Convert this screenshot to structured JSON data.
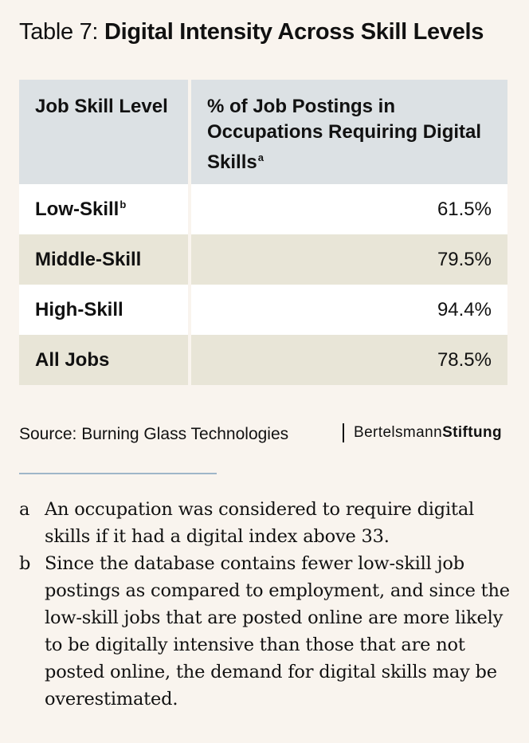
{
  "title": {
    "prefix": "Table 7: ",
    "main": "Digital Intensity Across Skill Levels"
  },
  "table": {
    "headers": [
      {
        "text": "Job Skill Level",
        "sup": ""
      },
      {
        "text": "% of Job Postings in Occupations Requiring Digital Skills",
        "sup": "a"
      }
    ],
    "rows": [
      {
        "label": "Low-Skill",
        "sup": "b",
        "value": "61.5%"
      },
      {
        "label": "Middle-Skill",
        "sup": "",
        "value": "79.5%"
      },
      {
        "label": "High-Skill",
        "sup": "",
        "value": "94.4%"
      },
      {
        "label": "All Jobs",
        "sup": "",
        "value": "78.5%"
      }
    ]
  },
  "source": "Source: Burning Glass Technologies",
  "brand": {
    "part1": "Bertelsmann",
    "part2": "Stiftung"
  },
  "notes": [
    {
      "letter": "a",
      "text": "An occupation was considered to require digital skills if it had a digital index above 33."
    },
    {
      "letter": "b",
      "text": "Since the database contains fewer low-skill job postings as compared to employment, and since the low-skill jobs that are posted online are more likely to be digitally intensive than those that are not posted online, the demand for digital skills may be overestimated."
    }
  ]
}
